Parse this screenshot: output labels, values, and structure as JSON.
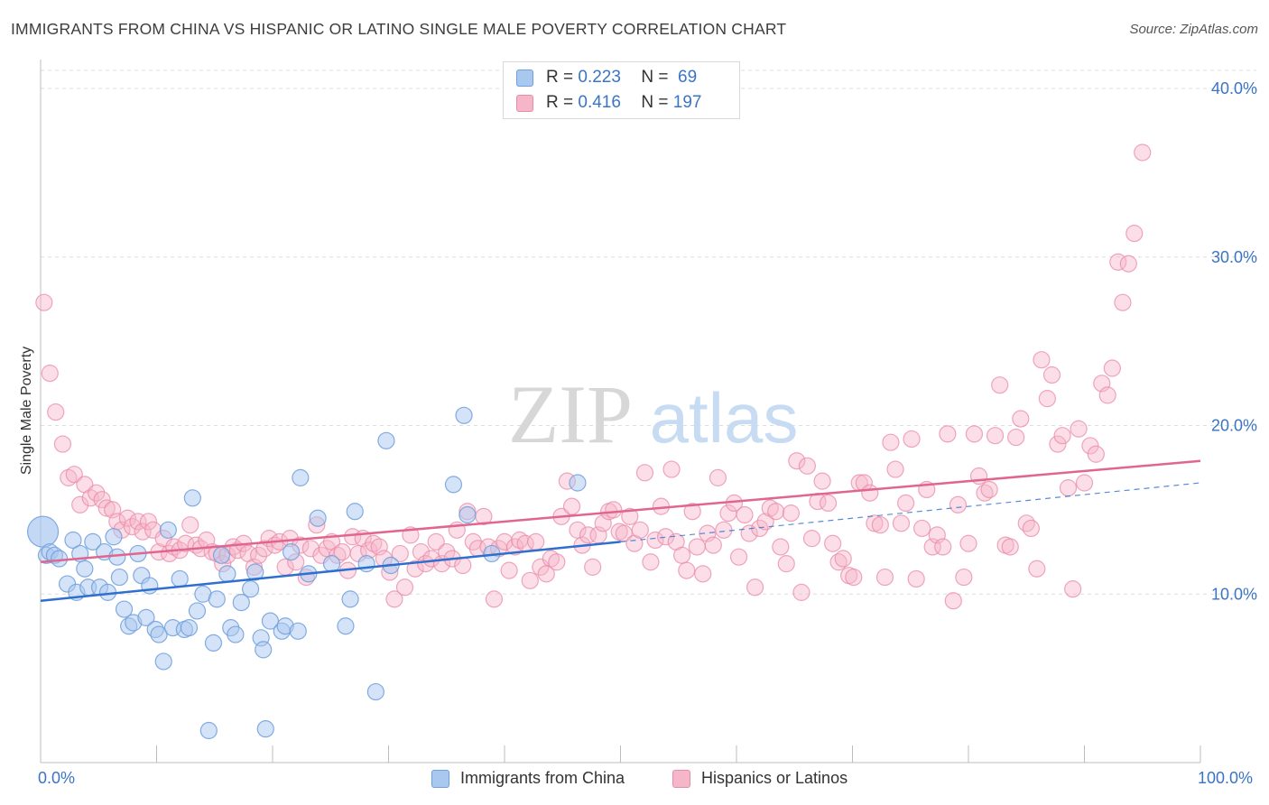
{
  "title": "IMMIGRANTS FROM CHINA VS HISPANIC OR LATINO SINGLE MALE POVERTY CORRELATION CHART",
  "source": "Source: ZipAtlas.com",
  "watermark": {
    "zip": "ZIP",
    "atlas": "atlas"
  },
  "colors": {
    "blue_fill": "#a9c8f0",
    "blue_stroke": "#6f9fdc",
    "blue_line": "#2f6fcd",
    "pink_fill": "#f6b6c9",
    "pink_stroke": "#e98aa8",
    "pink_line": "#e0668f",
    "axis_text": "#3a74c4",
    "grid": "#dddddd"
  },
  "legend": {
    "series": [
      {
        "r_key": "R = ",
        "r_value": "0.223",
        "n_key": "N = ",
        "n_value": " 69"
      },
      {
        "r_key": "R = ",
        "r_value": "0.416",
        "n_key": "N = ",
        "n_value": "197"
      }
    ]
  },
  "bottom_legend": [
    "Immigrants from China",
    "Hispanics or Latinos"
  ],
  "chart_data": {
    "type": "scatter",
    "title": "IMMIGRANTS FROM CHINA VS HISPANIC OR LATINO SINGLE MALE POVERTY CORRELATION CHART",
    "xlabel": "",
    "ylabel": "Single Male Poverty",
    "xlim": [
      0,
      100
    ],
    "ylim": [
      0,
      41.5
    ],
    "x_tick_labels": [
      "0.0%",
      "100.0%"
    ],
    "y_ticks": [
      10,
      20,
      30,
      40
    ],
    "y_tick_labels": [
      "10.0%",
      "20.0%",
      "30.0%",
      "40.0%"
    ],
    "grid": "horizontal dashed",
    "legend_position": "top-center",
    "series": [
      {
        "name": "Immigrants from China",
        "color": "#a9c8f0",
        "trend": {
          "x": [
            0,
            50
          ],
          "y": [
            9.6,
            13.1
          ],
          "dashed_extension_to": [
            100,
            16.6
          ]
        },
        "points": [
          [
            0.2,
            13.7
          ],
          [
            0.5,
            12.3
          ],
          [
            0.8,
            12.5
          ],
          [
            1.2,
            12.3
          ],
          [
            1.6,
            12.1
          ],
          [
            2.3,
            10.6
          ],
          [
            2.8,
            13.2
          ],
          [
            3.1,
            10.1
          ],
          [
            3.4,
            12.4
          ],
          [
            3.8,
            11.5
          ],
          [
            4.1,
            10.4
          ],
          [
            4.5,
            13.1
          ],
          [
            5.1,
            10.4
          ],
          [
            5.5,
            12.5
          ],
          [
            5.8,
            10.1
          ],
          [
            6.3,
            13.4
          ],
          [
            6.6,
            12.2
          ],
          [
            6.8,
            11.0
          ],
          [
            7.2,
            9.1
          ],
          [
            7.6,
            8.1
          ],
          [
            8.0,
            8.3
          ],
          [
            8.4,
            12.4
          ],
          [
            8.7,
            11.1
          ],
          [
            9.1,
            8.6
          ],
          [
            9.4,
            10.5
          ],
          [
            9.9,
            7.9
          ],
          [
            10.2,
            7.6
          ],
          [
            10.6,
            6.0
          ],
          [
            11.0,
            13.8
          ],
          [
            11.4,
            8.0
          ],
          [
            12.0,
            10.9
          ],
          [
            12.4,
            7.9
          ],
          [
            12.8,
            8.0
          ],
          [
            13.1,
            15.7
          ],
          [
            13.5,
            9.0
          ],
          [
            14.0,
            10.0
          ],
          [
            14.5,
            1.9
          ],
          [
            14.9,
            7.1
          ],
          [
            15.2,
            9.7
          ],
          [
            15.6,
            12.3
          ],
          [
            16.1,
            11.2
          ],
          [
            16.4,
            8.0
          ],
          [
            16.8,
            7.6
          ],
          [
            17.3,
            9.5
          ],
          [
            18.1,
            10.3
          ],
          [
            18.5,
            11.3
          ],
          [
            19.0,
            7.4
          ],
          [
            19.2,
            6.7
          ],
          [
            19.4,
            2.0
          ],
          [
            19.8,
            8.4
          ],
          [
            20.8,
            7.8
          ],
          [
            21.1,
            8.1
          ],
          [
            21.6,
            12.5
          ],
          [
            22.2,
            7.8
          ],
          [
            22.4,
            16.9
          ],
          [
            23.1,
            11.2
          ],
          [
            23.9,
            14.5
          ],
          [
            25.1,
            11.8
          ],
          [
            26.3,
            8.1
          ],
          [
            26.7,
            9.7
          ],
          [
            27.1,
            14.9
          ],
          [
            28.1,
            11.8
          ],
          [
            28.9,
            4.2
          ],
          [
            29.8,
            19.1
          ],
          [
            30.2,
            11.7
          ],
          [
            35.6,
            16.5
          ],
          [
            36.5,
            20.6
          ],
          [
            36.8,
            14.7
          ],
          [
            38.9,
            12.4
          ],
          [
            46.3,
            16.6
          ]
        ]
      },
      {
        "name": "Hispanics or Latinos",
        "color": "#f6b6c9",
        "trend": {
          "x": [
            0,
            100
          ],
          "y": [
            11.9,
            17.9
          ]
        },
        "points": [
          [
            0.3,
            27.3
          ],
          [
            0.8,
            23.1
          ],
          [
            1.3,
            20.8
          ],
          [
            1.9,
            18.9
          ],
          [
            2.4,
            16.9
          ],
          [
            2.9,
            17.1
          ],
          [
            3.4,
            15.3
          ],
          [
            3.8,
            16.5
          ],
          [
            4.3,
            15.7
          ],
          [
            4.8,
            16.0
          ],
          [
            5.3,
            15.6
          ],
          [
            5.7,
            15.1
          ],
          [
            6.2,
            15.0
          ],
          [
            6.6,
            14.3
          ],
          [
            7.0,
            13.8
          ],
          [
            7.5,
            14.5
          ],
          [
            7.9,
            14.0
          ],
          [
            8.4,
            14.3
          ],
          [
            8.8,
            13.7
          ],
          [
            9.3,
            14.3
          ],
          [
            9.7,
            13.8
          ],
          [
            10.2,
            12.5
          ],
          [
            10.6,
            13.3
          ],
          [
            11.1,
            12.4
          ],
          [
            11.5,
            12.8
          ],
          [
            12.0,
            12.6
          ],
          [
            12.5,
            13.0
          ],
          [
            12.9,
            14.1
          ],
          [
            13.4,
            12.9
          ],
          [
            13.8,
            12.7
          ],
          [
            14.3,
            13.2
          ],
          [
            14.8,
            12.5
          ],
          [
            15.2,
            12.4
          ],
          [
            15.7,
            11.8
          ],
          [
            16.1,
            12.3
          ],
          [
            16.6,
            12.8
          ],
          [
            17.0,
            12.6
          ],
          [
            17.5,
            13.0
          ],
          [
            17.9,
            12.4
          ],
          [
            18.4,
            11.6
          ],
          [
            18.8,
            12.3
          ],
          [
            19.3,
            12.7
          ],
          [
            19.7,
            13.3
          ],
          [
            20.2,
            12.9
          ],
          [
            20.6,
            13.1
          ],
          [
            21.1,
            11.6
          ],
          [
            21.5,
            13.3
          ],
          [
            22.0,
            11.9
          ],
          [
            22.4,
            12.9
          ],
          [
            22.9,
            11.0
          ],
          [
            23.3,
            12.7
          ],
          [
            23.8,
            14.1
          ],
          [
            24.2,
            12.3
          ],
          [
            24.7,
            12.7
          ],
          [
            25.1,
            13.1
          ],
          [
            25.6,
            12.3
          ],
          [
            26.0,
            12.5
          ],
          [
            26.5,
            11.4
          ],
          [
            26.9,
            13.4
          ],
          [
            27.4,
            12.4
          ],
          [
            27.8,
            13.3
          ],
          [
            28.3,
            12.6
          ],
          [
            28.7,
            13.0
          ],
          [
            29.2,
            12.8
          ],
          [
            29.6,
            12.1
          ],
          [
            30.1,
            11.3
          ],
          [
            30.5,
            9.7
          ],
          [
            31.0,
            12.4
          ],
          [
            31.4,
            10.4
          ],
          [
            31.9,
            13.5
          ],
          [
            32.3,
            11.5
          ],
          [
            32.8,
            12.5
          ],
          [
            33.2,
            11.8
          ],
          [
            33.7,
            12.1
          ],
          [
            34.1,
            13.1
          ],
          [
            34.6,
            11.8
          ],
          [
            35.0,
            12.5
          ],
          [
            35.5,
            12.1
          ],
          [
            35.9,
            13.8
          ],
          [
            36.4,
            11.7
          ],
          [
            36.8,
            14.9
          ],
          [
            37.3,
            13.1
          ],
          [
            37.7,
            12.7
          ],
          [
            38.2,
            14.6
          ],
          [
            38.6,
            12.8
          ],
          [
            39.1,
            9.7
          ],
          [
            39.5,
            12.7
          ],
          [
            40.0,
            13.1
          ],
          [
            40.4,
            11.4
          ],
          [
            40.9,
            12.8
          ],
          [
            41.3,
            13.2
          ],
          [
            41.8,
            13.0
          ],
          [
            42.2,
            10.8
          ],
          [
            42.7,
            13.1
          ],
          [
            43.1,
            11.6
          ],
          [
            43.6,
            11.2
          ],
          [
            44.0,
            12.1
          ],
          [
            44.5,
            11.9
          ],
          [
            44.9,
            14.6
          ],
          [
            45.4,
            16.7
          ],
          [
            45.8,
            15.2
          ],
          [
            46.3,
            13.8
          ],
          [
            46.7,
            12.9
          ],
          [
            47.2,
            13.5
          ],
          [
            47.6,
            11.6
          ],
          [
            48.1,
            13.5
          ],
          [
            48.5,
            14.2
          ],
          [
            49.0,
            14.9
          ],
          [
            49.4,
            15.0
          ],
          [
            49.9,
            13.7
          ],
          [
            50.3,
            13.6
          ],
          [
            50.8,
            14.6
          ],
          [
            51.2,
            13.0
          ],
          [
            51.7,
            13.8
          ],
          [
            52.1,
            17.2
          ],
          [
            52.6,
            11.9
          ],
          [
            53.0,
            13.2
          ],
          [
            53.5,
            15.2
          ],
          [
            53.9,
            13.4
          ],
          [
            54.4,
            17.4
          ],
          [
            54.8,
            13.1
          ],
          [
            55.3,
            12.3
          ],
          [
            55.7,
            11.4
          ],
          [
            56.2,
            14.9
          ],
          [
            56.6,
            12.8
          ],
          [
            57.1,
            11.2
          ],
          [
            57.5,
            13.6
          ],
          [
            58.0,
            12.9
          ],
          [
            58.4,
            16.9
          ],
          [
            58.9,
            13.8
          ],
          [
            59.3,
            14.8
          ],
          [
            59.8,
            15.4
          ],
          [
            60.2,
            12.2
          ],
          [
            60.7,
            14.7
          ],
          [
            61.1,
            13.6
          ],
          [
            61.6,
            10.4
          ],
          [
            62.0,
            13.9
          ],
          [
            62.5,
            14.3
          ],
          [
            62.9,
            15.1
          ],
          [
            63.4,
            14.9
          ],
          [
            63.8,
            12.8
          ],
          [
            64.3,
            11.8
          ],
          [
            64.7,
            14.8
          ],
          [
            65.2,
            17.9
          ],
          [
            65.6,
            10.1
          ],
          [
            66.1,
            17.6
          ],
          [
            66.5,
            13.3
          ],
          [
            67.0,
            15.5
          ],
          [
            67.4,
            16.7
          ],
          [
            67.9,
            15.4
          ],
          [
            68.3,
            13.0
          ],
          [
            68.8,
            11.9
          ],
          [
            69.2,
            12.1
          ],
          [
            69.7,
            11.1
          ],
          [
            70.1,
            11.0
          ],
          [
            70.6,
            16.6
          ],
          [
            71.0,
            16.6
          ],
          [
            71.5,
            16.0
          ],
          [
            71.9,
            14.2
          ],
          [
            72.4,
            14.1
          ],
          [
            72.8,
            11.0
          ],
          [
            73.3,
            19.0
          ],
          [
            73.7,
            17.4
          ],
          [
            74.2,
            14.2
          ],
          [
            74.6,
            15.4
          ],
          [
            75.1,
            19.2
          ],
          [
            75.5,
            10.9
          ],
          [
            76.0,
            13.9
          ],
          [
            76.4,
            16.2
          ],
          [
            76.9,
            12.8
          ],
          [
            77.3,
            13.5
          ],
          [
            77.8,
            12.8
          ],
          [
            78.2,
            19.5
          ],
          [
            78.7,
            9.6
          ],
          [
            79.1,
            15.3
          ],
          [
            79.6,
            11.0
          ],
          [
            80.0,
            13.0
          ],
          [
            80.5,
            19.5
          ],
          [
            80.9,
            17.0
          ],
          [
            81.4,
            16.0
          ],
          [
            81.8,
            16.2
          ],
          [
            82.3,
            19.4
          ],
          [
            82.7,
            22.4
          ],
          [
            83.2,
            12.9
          ],
          [
            83.6,
            12.8
          ],
          [
            84.1,
            19.3
          ],
          [
            84.5,
            20.4
          ],
          [
            85.0,
            14.2
          ],
          [
            85.4,
            13.9
          ],
          [
            85.9,
            11.5
          ],
          [
            86.3,
            23.9
          ],
          [
            86.8,
            21.6
          ],
          [
            87.2,
            23.0
          ],
          [
            87.7,
            18.9
          ],
          [
            88.1,
            19.4
          ],
          [
            88.6,
            16.3
          ],
          [
            89.0,
            10.3
          ],
          [
            89.5,
            19.8
          ],
          [
            90.0,
            16.6
          ],
          [
            90.5,
            18.8
          ],
          [
            91.0,
            18.3
          ],
          [
            91.5,
            22.5
          ],
          [
            92.0,
            21.8
          ],
          [
            92.4,
            23.4
          ],
          [
            92.9,
            29.7
          ],
          [
            93.3,
            27.3
          ],
          [
            93.8,
            29.6
          ],
          [
            94.3,
            31.4
          ],
          [
            95.0,
            36.2
          ]
        ]
      }
    ]
  }
}
